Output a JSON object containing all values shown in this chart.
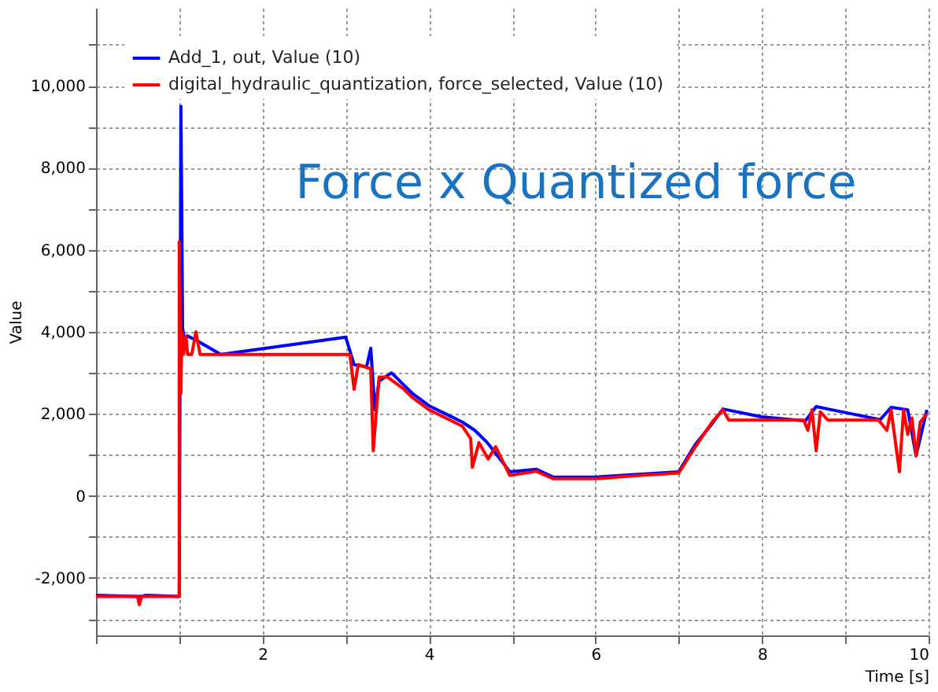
{
  "chart_data": {
    "type": "line",
    "title": "Force x Quantized force",
    "xlabel": "Time [s]",
    "ylabel": "Value",
    "xlim": [
      0,
      10
    ],
    "ylim": [
      -3400,
      11900
    ],
    "xticks": [
      {
        "value": 0,
        "label": null
      },
      {
        "value": 1,
        "label": null
      },
      2,
      {
        "value": 3,
        "label": null
      },
      4,
      {
        "value": 5,
        "label": null
      },
      6,
      {
        "value": 7,
        "label": null
      },
      8,
      {
        "value": 9,
        "label": null
      },
      10
    ],
    "yticks": [
      {
        "value": -3000,
        "label": null
      },
      {
        "value": -2000,
        "label": "-2,000"
      },
      {
        "value": -1000,
        "label": null
      },
      0,
      {
        "value": 1000,
        "label": null
      },
      {
        "value": 2000,
        "label": "2,000"
      },
      {
        "value": 3000,
        "label": null
      },
      {
        "value": 4000,
        "label": "4,000"
      },
      {
        "value": 5000,
        "label": null
      },
      {
        "value": 6000,
        "label": "6,000"
      },
      {
        "value": 7000,
        "label": null
      },
      {
        "value": 8000,
        "label": "8,000"
      },
      {
        "value": 9000,
        "label": null
      },
      {
        "value": 10000,
        "label": "10,000"
      },
      {
        "value": 11000,
        "label": null
      }
    ],
    "grid": true,
    "legend": "top left",
    "marker": "none",
    "line_style": "solid",
    "series": [
      {
        "name": "Add_1, out, Value  (10)",
        "color": "#0000ff",
        "x": [
          0,
          0.5,
          0.55,
          0.6,
          1.0,
          1.02,
          1.04,
          1.06,
          1.1,
          1.2,
          1.5,
          3.0,
          3.1,
          3.25,
          3.3,
          3.35,
          3.4,
          3.55,
          3.7,
          3.8,
          4.0,
          4.2,
          4.4,
          4.55,
          4.7,
          4.97,
          5.29,
          5.49,
          6.0,
          6.47,
          7.0,
          7.2,
          7.4,
          7.53,
          7.99,
          8.52,
          8.65,
          8.79,
          9.42,
          9.55,
          9.75,
          9.85,
          9.98
        ],
        "values": [
          -2420,
          -2450,
          -2450,
          -2420,
          -2450,
          9500,
          4100,
          3800,
          3900,
          3800,
          3450,
          3870,
          3200,
          3150,
          3600,
          2100,
          2800,
          3000,
          2700,
          2500,
          2200,
          2000,
          1800,
          1600,
          1300,
          590,
          650,
          460,
          460,
          520,
          590,
          1260,
          1760,
          2120,
          1930,
          1830,
          2180,
          2120,
          1860,
          2160,
          2100,
          980,
          2100
        ]
      },
      {
        "name": "digital_hydraulic_quantization, force_selected, Value  (10)",
        "color": "#ff0000",
        "x": [
          0,
          0.5,
          0.52,
          0.55,
          1.0,
          1.0,
          1.02,
          1.03,
          1.05,
          1.08,
          1.1,
          1.15,
          1.2,
          1.25,
          1.3,
          1.35,
          3.05,
          3.1,
          3.15,
          3.3,
          3.33,
          3.4,
          3.5,
          3.7,
          3.8,
          4.0,
          4.2,
          4.4,
          4.5,
          4.52,
          4.6,
          4.71,
          4.8,
          4.97,
          5.29,
          5.49,
          6.0,
          6.47,
          7.0,
          7.2,
          7.3,
          7.4,
          7.53,
          7.6,
          8.5,
          8.55,
          8.6,
          8.65,
          8.7,
          8.79,
          9.4,
          9.5,
          9.55,
          9.65,
          9.7,
          9.75,
          9.8,
          9.85,
          9.9,
          9.98
        ],
        "values": [
          -2450,
          -2450,
          -2650,
          -2450,
          -2450,
          6200,
          2500,
          4000,
          3450,
          3900,
          3450,
          3450,
          4000,
          3450,
          3450,
          3450,
          3450,
          2600,
          3200,
          3100,
          1100,
          2900,
          2900,
          2600,
          2400,
          2100,
          1900,
          1700,
          1400,
          700,
          1300,
          900,
          1200,
          500,
          600,
          420,
          420,
          490,
          560,
          1200,
          1500,
          1800,
          2100,
          1850,
          1850,
          1600,
          2100,
          1100,
          2050,
          1850,
          1850,
          1600,
          2100,
          590,
          2100,
          1500,
          1900,
          980,
          1800,
          2000
        ]
      }
    ]
  }
}
